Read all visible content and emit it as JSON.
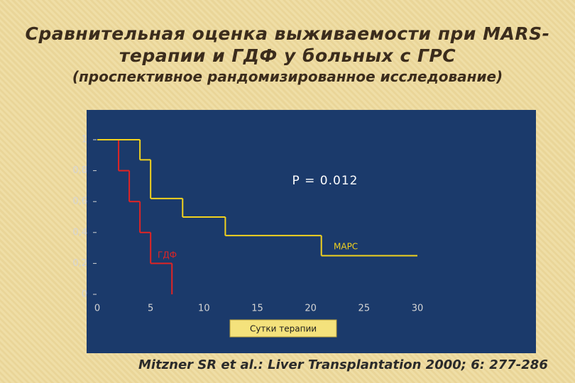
{
  "title": [
    "Сравнительная оценка выживаемости при MARS-",
    "терапии и ГДФ у больных с ГРС"
  ],
  "subtitle": "(проспективное рандомизированное исследование)",
  "footer": "Mitzner SR et al.: Liver Transplantation 2000; 6: 277-286",
  "chart_data": {
    "type": "step",
    "annotation": "P = 0.012",
    "xlabel": "Сутки терапии",
    "xlim": [
      0,
      30
    ],
    "xticks": [
      0,
      5,
      10,
      15,
      20,
      25,
      30
    ],
    "ylim": [
      0,
      1
    ],
    "yticks": [
      0,
      {
        "value": 0.2,
        "label": "0,2"
      },
      {
        "value": 0.4,
        "label": "0,4"
      },
      {
        "value": 0.6,
        "label": "0,6"
      },
      {
        "value": 0.8,
        "label": "0,8"
      },
      1
    ],
    "series": [
      {
        "name": "ГДФ",
        "color": "#e02424",
        "x": [
          0,
          2,
          3,
          4,
          5,
          7
        ],
        "values": [
          1,
          0.8,
          0.6,
          0.4,
          0.2,
          0
        ]
      },
      {
        "name": "МАРС",
        "color": "#f2d21e",
        "x": [
          0,
          4,
          5,
          8,
          12,
          21,
          30
        ],
        "values": [
          1,
          0.87,
          0.62,
          0.5,
          0.38,
          0.25,
          0.25
        ]
      }
    ]
  }
}
